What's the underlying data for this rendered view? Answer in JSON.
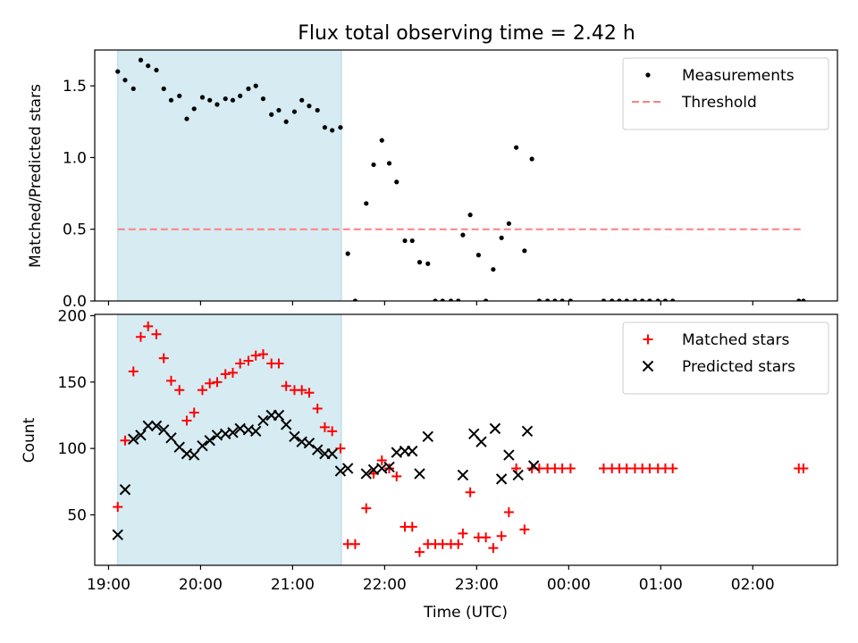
{
  "chart_data": {
    "type": "scatter",
    "title": "Flux total observing time = 2.42 h",
    "xlabel": "Time (UTC)",
    "x_unit": "hours (UTC, past midnight > 24)",
    "xlim": [
      18.85,
      26.92
    ],
    "x_ticks": [
      {
        "value": 19,
        "label": "19:00"
      },
      {
        "value": 20,
        "label": "20:00"
      },
      {
        "value": 21,
        "label": "21:00"
      },
      {
        "value": 22,
        "label": "22:00"
      },
      {
        "value": 23,
        "label": "23:00"
      },
      {
        "value": 24,
        "label": "00:00"
      },
      {
        "value": 25,
        "label": "01:00"
      },
      {
        "value": 26,
        "label": "02:00"
      }
    ],
    "shaded_span": {
      "x_start": 19.1,
      "x_end": 21.53,
      "color": "#add8e6"
    },
    "top_panel": {
      "ylabel": "Matched/Predicted stars",
      "ylim": [
        0,
        1.75
      ],
      "y_ticks": [
        "0.0",
        "0.5",
        "1.0",
        "1.5"
      ],
      "legend": {
        "position": "upper right"
      },
      "series": [
        {
          "name": "Measurements",
          "marker": "dot",
          "color": "#000000",
          "points": [
            [
              19.1,
              1.6
            ],
            [
              19.18,
              1.54
            ],
            [
              19.27,
              1.48
            ],
            [
              19.35,
              1.68
            ],
            [
              19.43,
              1.64
            ],
            [
              19.52,
              1.61
            ],
            [
              19.6,
              1.48
            ],
            [
              19.68,
              1.4
            ],
            [
              19.77,
              1.43
            ],
            [
              19.85,
              1.27
            ],
            [
              19.93,
              1.34
            ],
            [
              20.02,
              1.42
            ],
            [
              20.1,
              1.4
            ],
            [
              20.18,
              1.37
            ],
            [
              20.27,
              1.41
            ],
            [
              20.35,
              1.4
            ],
            [
              20.43,
              1.43
            ],
            [
              20.52,
              1.48
            ],
            [
              20.6,
              1.5
            ],
            [
              20.68,
              1.41
            ],
            [
              20.77,
              1.3
            ],
            [
              20.85,
              1.33
            ],
            [
              20.93,
              1.25
            ],
            [
              21.02,
              1.32
            ],
            [
              21.1,
              1.4
            ],
            [
              21.18,
              1.36
            ],
            [
              21.27,
              1.33
            ],
            [
              21.35,
              1.21
            ],
            [
              21.43,
              1.19
            ],
            [
              21.52,
              1.21
            ],
            [
              21.6,
              0.33
            ],
            [
              21.68,
              0.0
            ],
            [
              21.8,
              0.68
            ],
            [
              21.88,
              0.95
            ],
            [
              21.97,
              1.12
            ],
            [
              22.05,
              0.96
            ],
            [
              22.13,
              0.83
            ],
            [
              22.22,
              0.42
            ],
            [
              22.3,
              0.42
            ],
            [
              22.38,
              0.27
            ],
            [
              22.47,
              0.26
            ],
            [
              22.55,
              0.0
            ],
            [
              22.63,
              0.0
            ],
            [
              22.72,
              0.0
            ],
            [
              22.8,
              0.0
            ],
            [
              22.85,
              0.46
            ],
            [
              22.93,
              0.6
            ],
            [
              23.02,
              0.32
            ],
            [
              23.1,
              0.0
            ],
            [
              23.18,
              0.22
            ],
            [
              23.27,
              0.44
            ],
            [
              23.35,
              0.54
            ],
            [
              23.43,
              1.07
            ],
            [
              23.52,
              0.35
            ],
            [
              23.6,
              0.99
            ],
            [
              23.68,
              0.0
            ],
            [
              23.77,
              0.0
            ],
            [
              23.85,
              0.0
            ],
            [
              23.93,
              0.0
            ],
            [
              24.02,
              0.0
            ],
            [
              24.38,
              0.0
            ],
            [
              24.47,
              0.0
            ],
            [
              24.55,
              0.0
            ],
            [
              24.63,
              0.0
            ],
            [
              24.72,
              0.0
            ],
            [
              24.8,
              0.0
            ],
            [
              24.88,
              0.0
            ],
            [
              24.97,
              0.0
            ],
            [
              25.05,
              0.0
            ],
            [
              25.13,
              0.0
            ],
            [
              26.5,
              0.0
            ],
            [
              26.55,
              0.0
            ]
          ]
        },
        {
          "name": "Threshold",
          "marker": "dashed-line",
          "color": "#ff8080",
          "points": [
            [
              19.1,
              0.5
            ],
            [
              26.55,
              0.5
            ]
          ]
        }
      ]
    },
    "bottom_panel": {
      "ylabel": "Count",
      "ylim": [
        12,
        201
      ],
      "y_ticks": [
        "50",
        "100",
        "150",
        "200"
      ],
      "legend": {
        "position": "upper right"
      },
      "series": [
        {
          "name": "Matched stars",
          "marker": "plus",
          "color": "#ff0000",
          "points": [
            [
              19.1,
              56
            ],
            [
              19.18,
              106
            ],
            [
              19.27,
              158
            ],
            [
              19.35,
              184
            ],
            [
              19.43,
              192
            ],
            [
              19.52,
              186
            ],
            [
              19.6,
              168
            ],
            [
              19.68,
              151
            ],
            [
              19.77,
              144
            ],
            [
              19.85,
              121
            ],
            [
              19.93,
              127
            ],
            [
              20.02,
              144
            ],
            [
              20.1,
              149
            ],
            [
              20.18,
              150
            ],
            [
              20.27,
              156
            ],
            [
              20.35,
              157
            ],
            [
              20.43,
              164
            ],
            [
              20.52,
              166
            ],
            [
              20.6,
              170
            ],
            [
              20.68,
              171
            ],
            [
              20.77,
              164
            ],
            [
              20.85,
              164
            ],
            [
              20.93,
              147
            ],
            [
              21.02,
              144
            ],
            [
              21.1,
              144
            ],
            [
              21.18,
              142
            ],
            [
              21.27,
              130
            ],
            [
              21.35,
              116
            ],
            [
              21.43,
              113
            ],
            [
              21.52,
              100
            ],
            [
              21.6,
              28
            ],
            [
              21.68,
              28
            ],
            [
              21.8,
              55
            ],
            [
              21.88,
              81
            ],
            [
              21.97,
              91
            ],
            [
              22.05,
              85
            ],
            [
              22.13,
              79
            ],
            [
              22.22,
              41
            ],
            [
              22.3,
              41
            ],
            [
              22.38,
              22
            ],
            [
              22.47,
              28
            ],
            [
              22.55,
              28
            ],
            [
              22.63,
              28
            ],
            [
              22.72,
              28
            ],
            [
              22.8,
              28
            ],
            [
              22.85,
              36
            ],
            [
              22.93,
              67
            ],
            [
              23.02,
              33
            ],
            [
              23.1,
              33
            ],
            [
              23.18,
              25
            ],
            [
              23.27,
              34
            ],
            [
              23.35,
              52
            ],
            [
              23.43,
              85
            ],
            [
              23.52,
              39
            ],
            [
              23.6,
              85
            ],
            [
              23.68,
              85
            ],
            [
              23.77,
              85
            ],
            [
              23.85,
              85
            ],
            [
              23.93,
              85
            ],
            [
              24.02,
              85
            ],
            [
              24.38,
              85
            ],
            [
              24.47,
              85
            ],
            [
              24.55,
              85
            ],
            [
              24.63,
              85
            ],
            [
              24.72,
              85
            ],
            [
              24.8,
              85
            ],
            [
              24.88,
              85
            ],
            [
              24.97,
              85
            ],
            [
              25.05,
              85
            ],
            [
              25.13,
              85
            ],
            [
              26.5,
              85
            ],
            [
              26.55,
              85
            ]
          ]
        },
        {
          "name": "Predicted stars",
          "marker": "x",
          "color": "#000000",
          "points": [
            [
              19.1,
              35
            ],
            [
              19.18,
              69
            ],
            [
              19.27,
              107
            ],
            [
              19.35,
              110
            ],
            [
              19.43,
              117
            ],
            [
              19.52,
              117
            ],
            [
              19.6,
              114
            ],
            [
              19.68,
              108
            ],
            [
              19.77,
              101
            ],
            [
              19.85,
              96
            ],
            [
              19.93,
              95
            ],
            [
              20.02,
              102
            ],
            [
              20.1,
              106
            ],
            [
              20.18,
              110
            ],
            [
              20.27,
              111
            ],
            [
              20.35,
              112
            ],
            [
              20.43,
              115
            ],
            [
              20.52,
              114
            ],
            [
              20.6,
              113
            ],
            [
              20.68,
              121
            ],
            [
              20.77,
              125
            ],
            [
              20.85,
              125
            ],
            [
              20.93,
              118
            ],
            [
              21.02,
              109
            ],
            [
              21.1,
              105
            ],
            [
              21.18,
              104
            ],
            [
              21.27,
              99
            ],
            [
              21.35,
              96
            ],
            [
              21.43,
              96
            ],
            [
              21.52,
              83
            ],
            [
              21.6,
              85
            ],
            [
              21.8,
              81
            ],
            [
              21.88,
              84
            ],
            [
              21.97,
              85
            ],
            [
              22.05,
              86
            ],
            [
              22.13,
              97
            ],
            [
              22.22,
              98
            ],
            [
              22.3,
              98
            ],
            [
              22.38,
              81
            ],
            [
              22.47,
              109
            ],
            [
              22.85,
              80
            ],
            [
              22.97,
              111
            ],
            [
              23.05,
              105
            ],
            [
              23.2,
              115
            ],
            [
              23.27,
              77
            ],
            [
              23.35,
              95
            ],
            [
              23.45,
              80
            ],
            [
              23.55,
              113
            ],
            [
              23.62,
              87
            ]
          ]
        }
      ]
    }
  }
}
